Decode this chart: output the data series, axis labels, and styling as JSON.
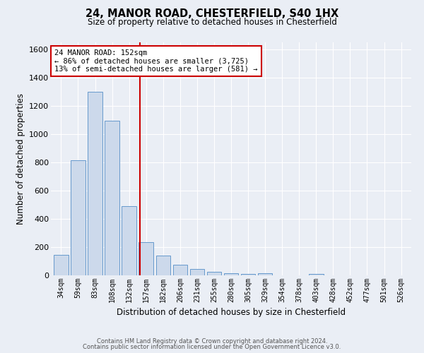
{
  "title1": "24, MANOR ROAD, CHESTERFIELD, S40 1HX",
  "title2": "Size of property relative to detached houses in Chesterfield",
  "xlabel": "Distribution of detached houses by size in Chesterfield",
  "ylabel": "Number of detached properties",
  "bar_labels": [
    "34sqm",
    "59sqm",
    "83sqm",
    "108sqm",
    "132sqm",
    "157sqm",
    "182sqm",
    "206sqm",
    "231sqm",
    "255sqm",
    "280sqm",
    "305sqm",
    "329sqm",
    "354sqm",
    "378sqm",
    "403sqm",
    "428sqm",
    "452sqm",
    "477sqm",
    "501sqm",
    "526sqm"
  ],
  "bar_values": [
    145,
    815,
    1300,
    1095,
    490,
    235,
    140,
    75,
    45,
    25,
    15,
    8,
    13,
    0,
    0,
    10,
    0,
    0,
    0,
    0,
    0
  ],
  "bar_color": "#ccd9eb",
  "bar_edge_color": "#6699cc",
  "background_color": "#eaeef5",
  "grid_color": "#ffffff",
  "vline_color": "#cc0000",
  "annotation_line1": "24 MANOR ROAD: 152sqm",
  "annotation_line2": "← 86% of detached houses are smaller (3,725)",
  "annotation_line3": "13% of semi-detached houses are larger (581) →",
  "annotation_box_color": "#ffffff",
  "annotation_box_edge": "#cc0000",
  "ylim": [
    0,
    1650
  ],
  "yticks": [
    0,
    200,
    400,
    600,
    800,
    1000,
    1200,
    1400,
    1600
  ],
  "footnote1": "Contains HM Land Registry data © Crown copyright and database right 2024.",
  "footnote2": "Contains public sector information licensed under the Open Government Licence v3.0."
}
